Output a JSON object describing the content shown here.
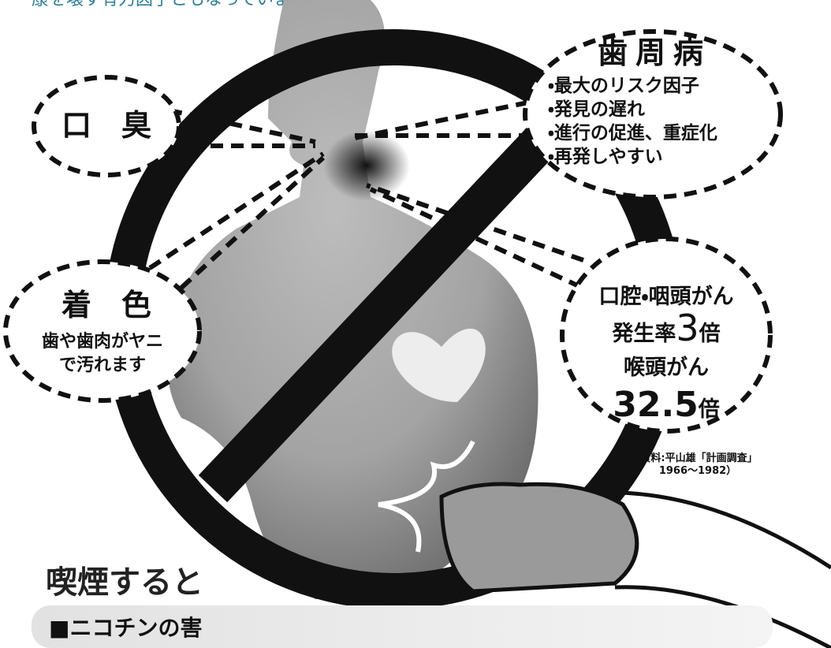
{
  "header": {
    "text": "康を壊す有力因子ともなっています。"
  },
  "mouth_odor": {
    "title": "口　臭"
  },
  "periodontal": {
    "title": "歯周病",
    "items": [
      "・最大のリスク因子",
      "・発見の遅れ",
      "・進行の促進、重症化",
      "・再発しやすい"
    ]
  },
  "staining": {
    "title": "着　色",
    "lines": [
      "歯や歯肉がヤニ",
      "で汚れます"
    ]
  },
  "cancer": {
    "line1": "口腔・咽頭がん",
    "rate_label": "発生率",
    "rate": "3",
    "rate_unit": "倍",
    "line3": "喉頭がん",
    "larynx_rate": "32.5",
    "larynx_unit": "倍"
  },
  "source": {
    "lines": [
      "（資料:平山雄「計画調査」",
      "1966〜1982）"
    ]
  },
  "heading": "喫煙すると",
  "section": "■ニコチンの害"
}
